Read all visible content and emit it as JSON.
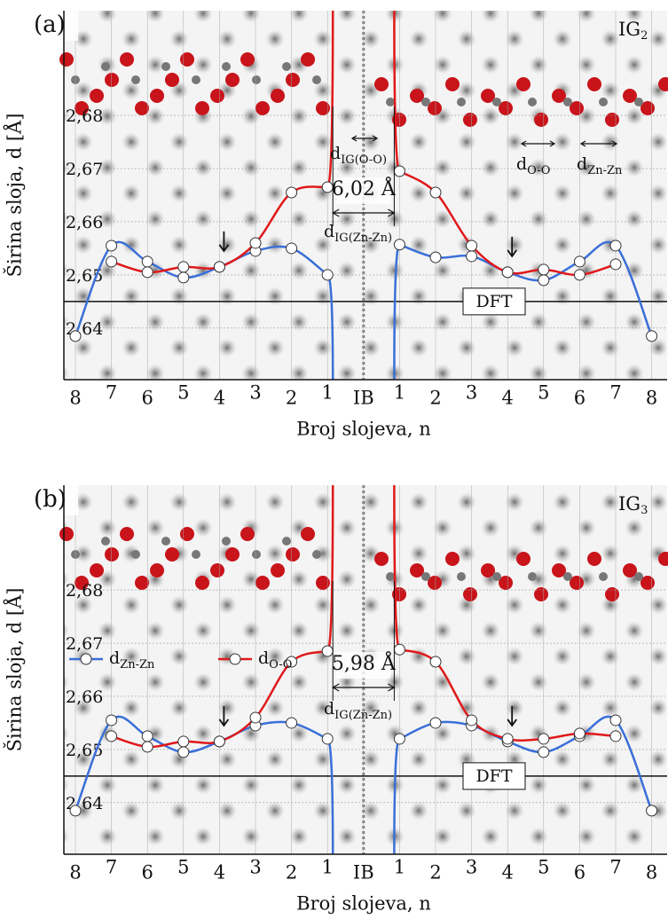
{
  "chart_data": [
    {
      "type": "line",
      "panel_label": "(a)",
      "corner_label": {
        "text": "IG",
        "sub": "2"
      },
      "gap_label": "6,02 Å",
      "annotations": [
        {
          "text": "d",
          "sub": "IG(Zn-Zn)"
        },
        {
          "text": "d",
          "sub": "IG(O-O)"
        },
        {
          "text": "d",
          "sub": "O-O"
        },
        {
          "text": "d",
          "sub": "Zn-Zn"
        }
      ],
      "x_label": "Broj slojeva, n",
      "y_label": "Širina sloja, d [Å]",
      "categories": [
        "8",
        "7",
        "6",
        "5",
        "4",
        "3",
        "2",
        "1",
        "IB",
        "1",
        "2",
        "3",
        "4",
        "5",
        "6",
        "7",
        "8"
      ],
      "series": [
        {
          "color": "#3a6fd8",
          "values": [
            2.6385,
            2.6555,
            2.6525,
            2.6495,
            2.6515,
            2.6545,
            2.655,
            2.65,
            null,
            2.6557,
            2.6533,
            2.6535,
            2.6505,
            2.649,
            2.6525,
            2.6555,
            2.6385
          ]
        },
        {
          "color": "#e0191b",
          "values": [
            null,
            2.6525,
            2.6505,
            2.6515,
            2.6515,
            2.656,
            2.6655,
            2.6665,
            null,
            2.6695,
            2.6655,
            2.6555,
            2.6505,
            2.651,
            2.65,
            2.652,
            null
          ]
        }
      ],
      "ylim": [
        2.6303,
        2.6997
      ],
      "yticks": [
        {
          "value": 2.64,
          "label": "2,64"
        },
        {
          "value": 2.65,
          "label": "2,65"
        },
        {
          "value": 2.66,
          "label": "2,66"
        },
        {
          "value": 2.67,
          "label": "2,67"
        },
        {
          "value": 2.68,
          "label": "2,68"
        }
      ],
      "reference": {
        "value": 2.645,
        "label": "DFT"
      },
      "legend": false
    },
    {
      "type": "line",
      "panel_label": "(b)",
      "corner_label": {
        "text": "IG",
        "sub": "3"
      },
      "gap_label": "5,98 Å",
      "annotations": [
        {
          "text": "d",
          "sub": "IG(Zn-Zn)"
        }
      ],
      "x_label": "Broj slojeva, n",
      "y_label": "Širina sloja, d [Å]",
      "categories": [
        "8",
        "7",
        "6",
        "5",
        "4",
        "3",
        "2",
        "1",
        "IB",
        "1",
        "2",
        "3",
        "4",
        "5",
        "6",
        "7",
        "8"
      ],
      "series": [
        {
          "name": "d",
          "name_sub": "Zn-Zn",
          "color": "#3a6fd8",
          "values": [
            2.6385,
            2.6555,
            2.6525,
            2.6495,
            2.6515,
            2.6545,
            2.655,
            2.652,
            null,
            2.652,
            2.655,
            2.6545,
            2.6515,
            2.6495,
            2.6525,
            2.6555,
            2.6385
          ]
        },
        {
          "name": "d",
          "name_sub": "O-O",
          "color": "#e0191b",
          "values": [
            null,
            2.6525,
            2.6505,
            2.6515,
            2.6515,
            2.656,
            2.6665,
            2.6685,
            null,
            2.6688,
            2.6665,
            2.6555,
            2.652,
            2.652,
            2.653,
            2.6525,
            null
          ]
        }
      ],
      "ylim": [
        2.6303,
        2.6997
      ],
      "yticks": [
        {
          "value": 2.64,
          "label": "2,64"
        },
        {
          "value": 2.65,
          "label": "2,65"
        },
        {
          "value": 2.66,
          "label": "2,66"
        },
        {
          "value": 2.67,
          "label": "2,67"
        },
        {
          "value": 2.68,
          "label": "2,68"
        }
      ],
      "reference": {
        "value": 2.645,
        "label": "DFT"
      },
      "legend": true
    }
  ]
}
